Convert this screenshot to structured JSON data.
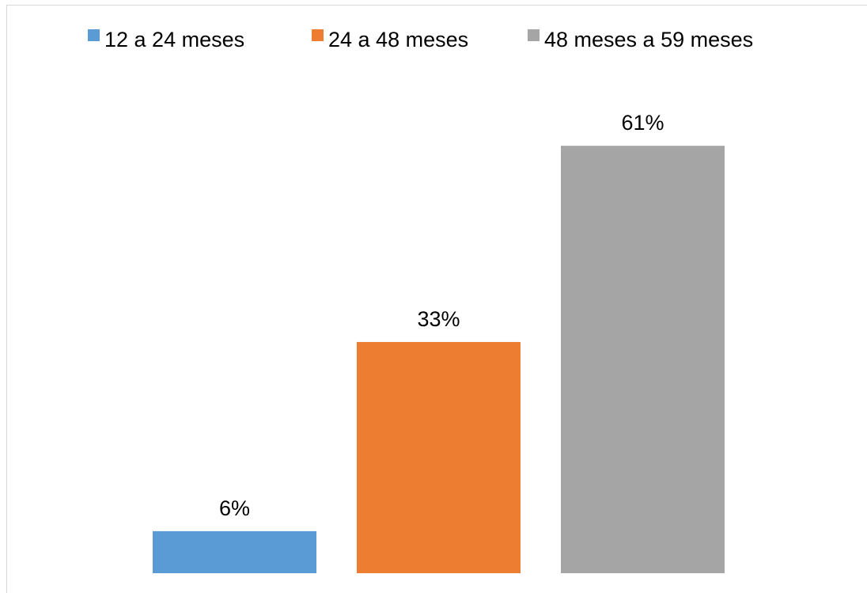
{
  "chart_data": {
    "type": "bar",
    "categories": [
      "12 a 24 meses",
      "24 a 48 meses",
      "48 meses a 59 meses"
    ],
    "values": [
      6,
      33,
      61
    ],
    "data_labels": [
      "6%",
      "33%",
      "61%"
    ],
    "colors": [
      "#5b9bd5",
      "#ed7d31",
      "#a5a5a5"
    ],
    "title": "",
    "xlabel": "",
    "ylabel": "",
    "ylim": [
      0,
      70
    ],
    "grid": false,
    "legend": "top-center",
    "legend_entries": [
      "12 a 24 meses",
      "24 a 48 meses",
      "48 meses a 59 meses"
    ]
  }
}
